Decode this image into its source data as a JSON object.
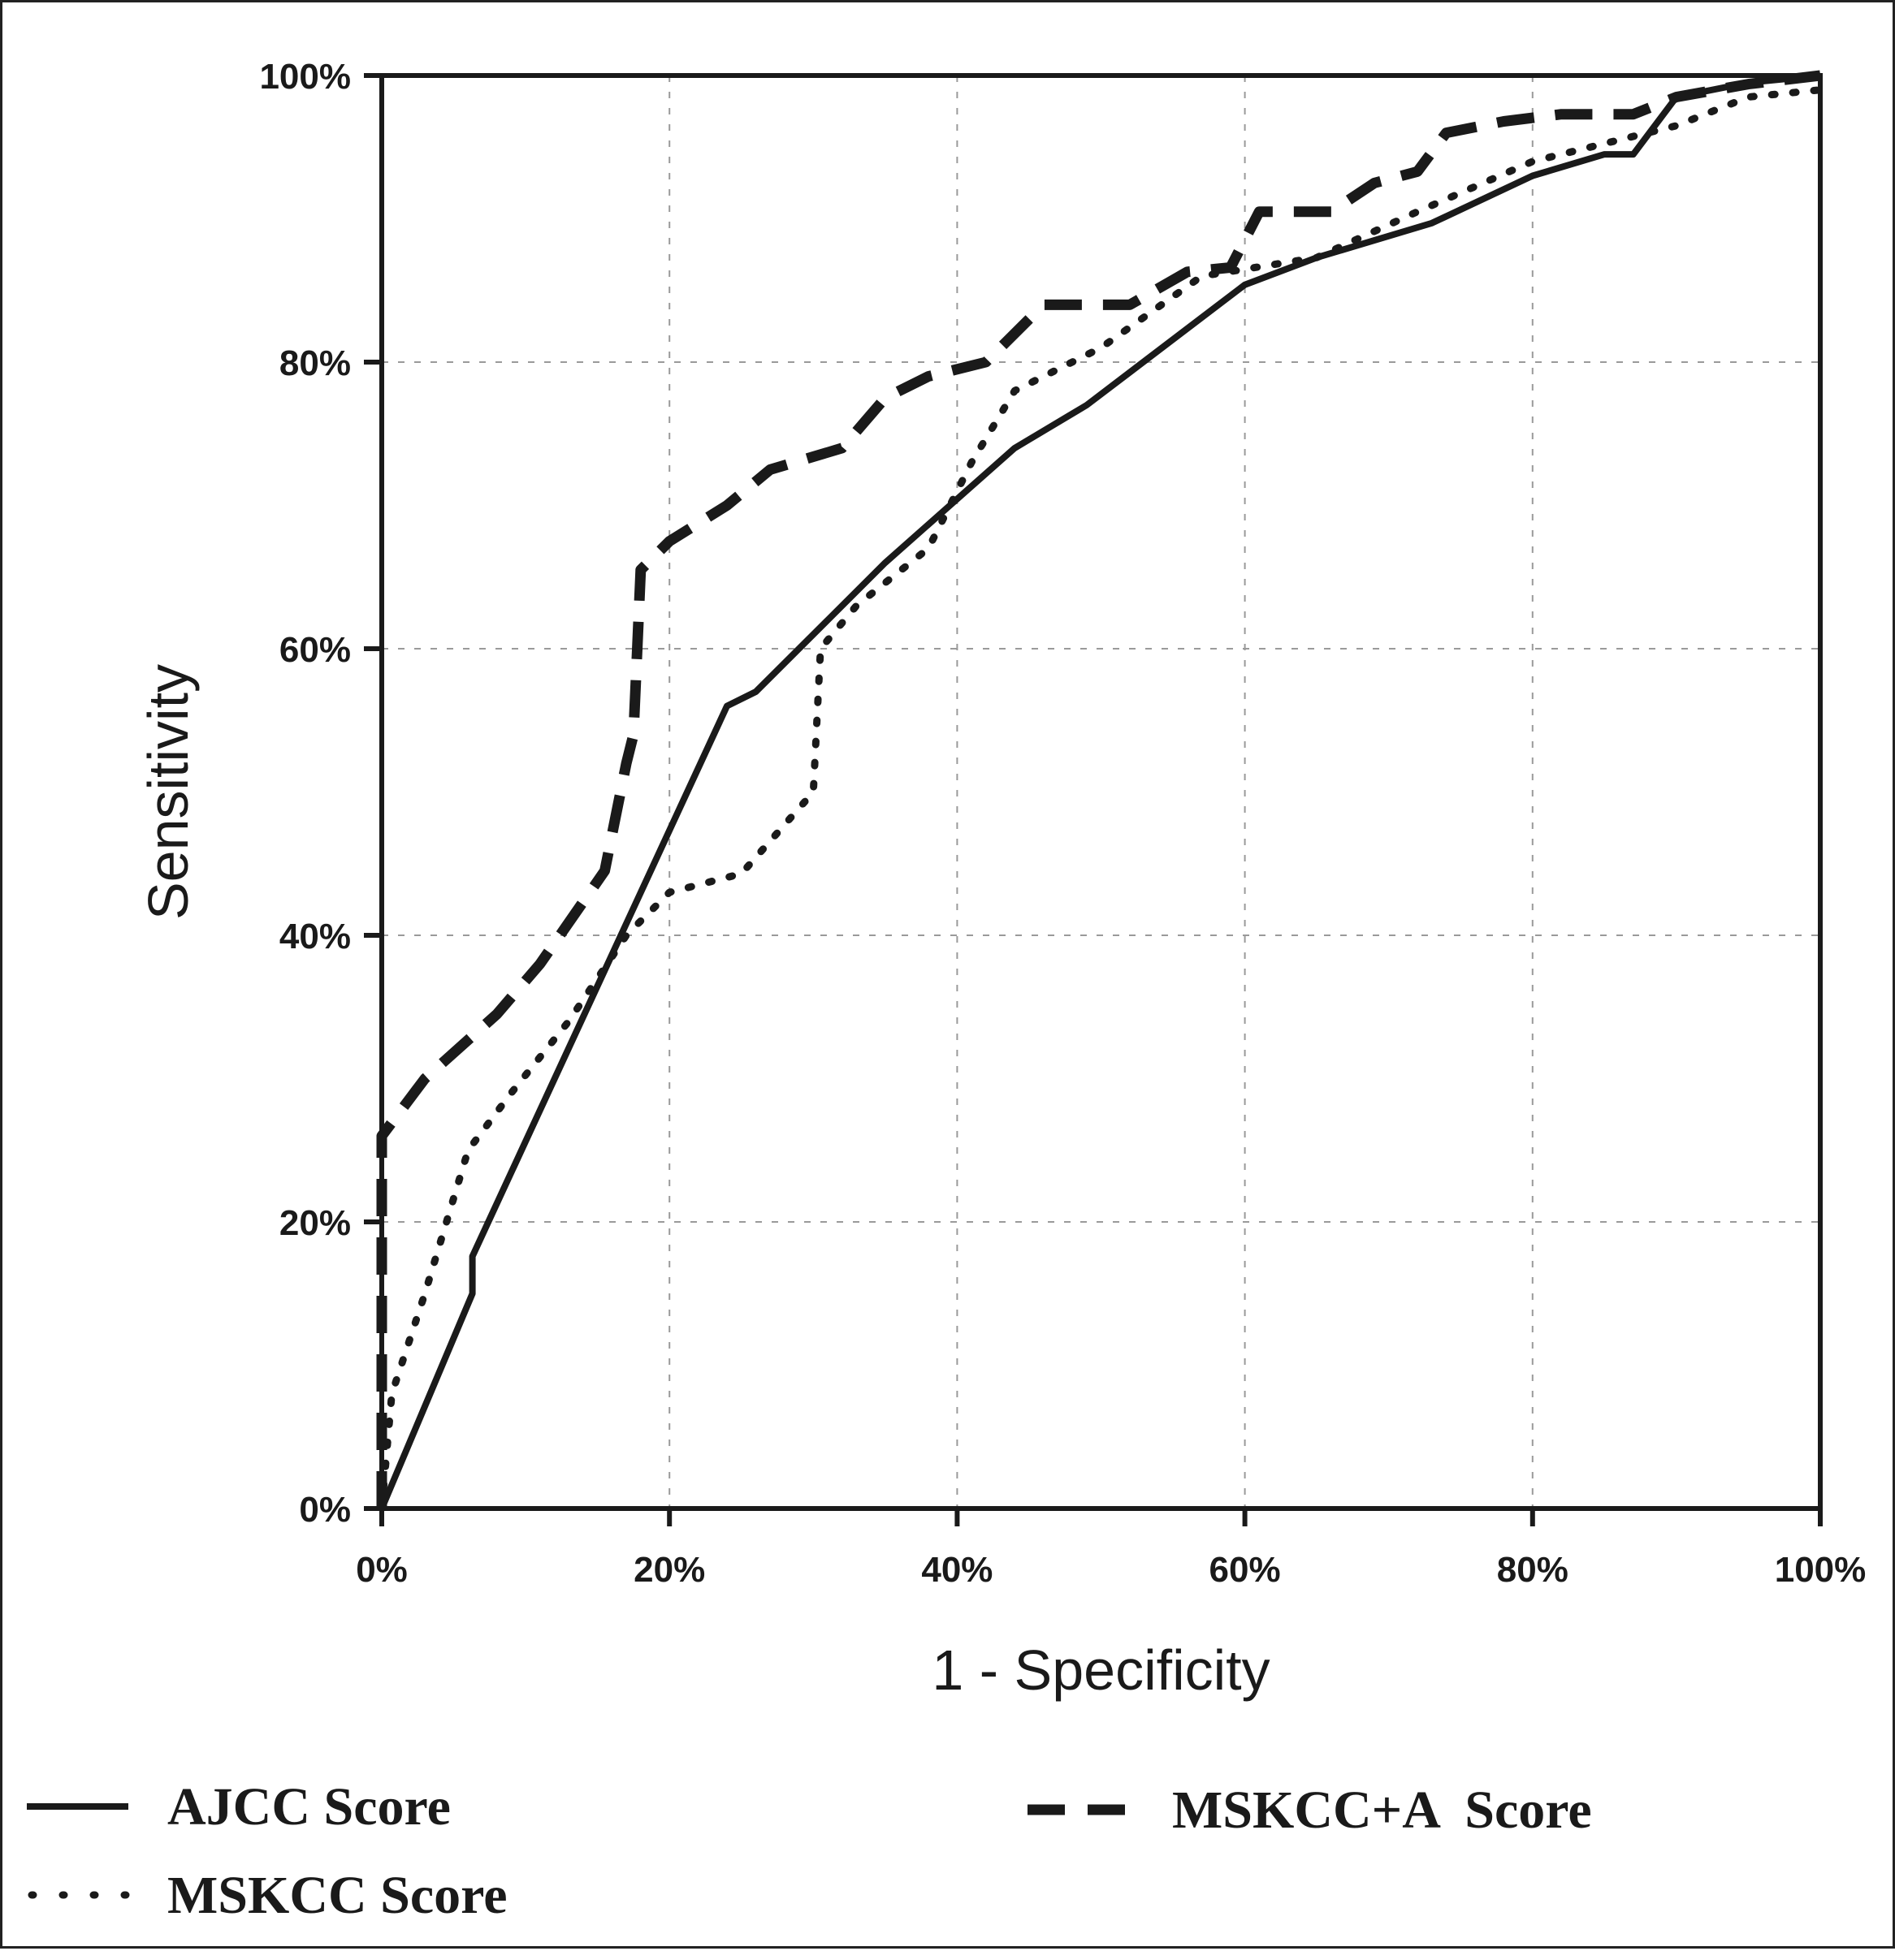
{
  "chart_data": {
    "type": "line",
    "xlabel": "1 - Specificity",
    "ylabel": "Sensitivity",
    "xlim": [
      0,
      100
    ],
    "ylim": [
      0,
      100
    ],
    "x_ticks": [
      0,
      20,
      40,
      60,
      80,
      100
    ],
    "y_ticks": [
      0,
      20,
      40,
      60,
      80,
      100
    ],
    "x_tick_labels": [
      "0%",
      "20%",
      "40%",
      "60%",
      "80%",
      "100%"
    ],
    "y_tick_labels": [
      "0%",
      "20%",
      "40%",
      "60%",
      "80%",
      "100%"
    ],
    "grid": true,
    "legend_position": "bottom",
    "series": [
      {
        "name": "AJCC Score",
        "style": "solid",
        "x": [
          0,
          6.3,
          6.3,
          24,
          26,
          35,
          44,
          49,
          60,
          65,
          73,
          80,
          85,
          87,
          90,
          95,
          100
        ],
        "y": [
          0,
          15,
          17.6,
          56,
          57,
          66,
          74,
          77,
          85.4,
          87.3,
          89.7,
          93,
          94.5,
          94.5,
          98.5,
          99.5,
          100
        ]
      },
      {
        "name": "MSKCC Score",
        "style": "dotted",
        "x": [
          0,
          0.7,
          3,
          6,
          9,
          13,
          17,
          20,
          25,
          30,
          30.5,
          33,
          38,
          41,
          44,
          50,
          57,
          65,
          72,
          80,
          90,
          95,
          100
        ],
        "y": [
          0,
          8,
          15,
          25,
          29,
          34,
          40,
          43,
          44.3,
          50,
          60,
          63,
          67,
          73,
          78,
          81,
          86,
          87.3,
          90.5,
          94,
          96.5,
          98.5,
          99
        ]
      },
      {
        "name": "MSKCC+A  Score",
        "style": "dashed",
        "x": [
          0,
          0,
          3,
          8,
          11,
          15.5,
          17,
          17.5,
          18,
          20,
          24,
          27,
          32,
          35,
          38,
          42,
          46,
          52,
          56,
          59,
          61,
          66,
          69,
          72,
          74,
          78,
          82,
          87,
          90,
          95,
          100
        ],
        "y": [
          0,
          26,
          30,
          34.5,
          38,
          44.5,
          52,
          54,
          65.5,
          67.5,
          70,
          72.5,
          74,
          77.5,
          79,
          80,
          84,
          84,
          86.3,
          86.6,
          90.5,
          90.5,
          92.5,
          93.3,
          96,
          96.8,
          97.3,
          97.3,
          98.5,
          99.4,
          100
        ]
      }
    ]
  }
}
